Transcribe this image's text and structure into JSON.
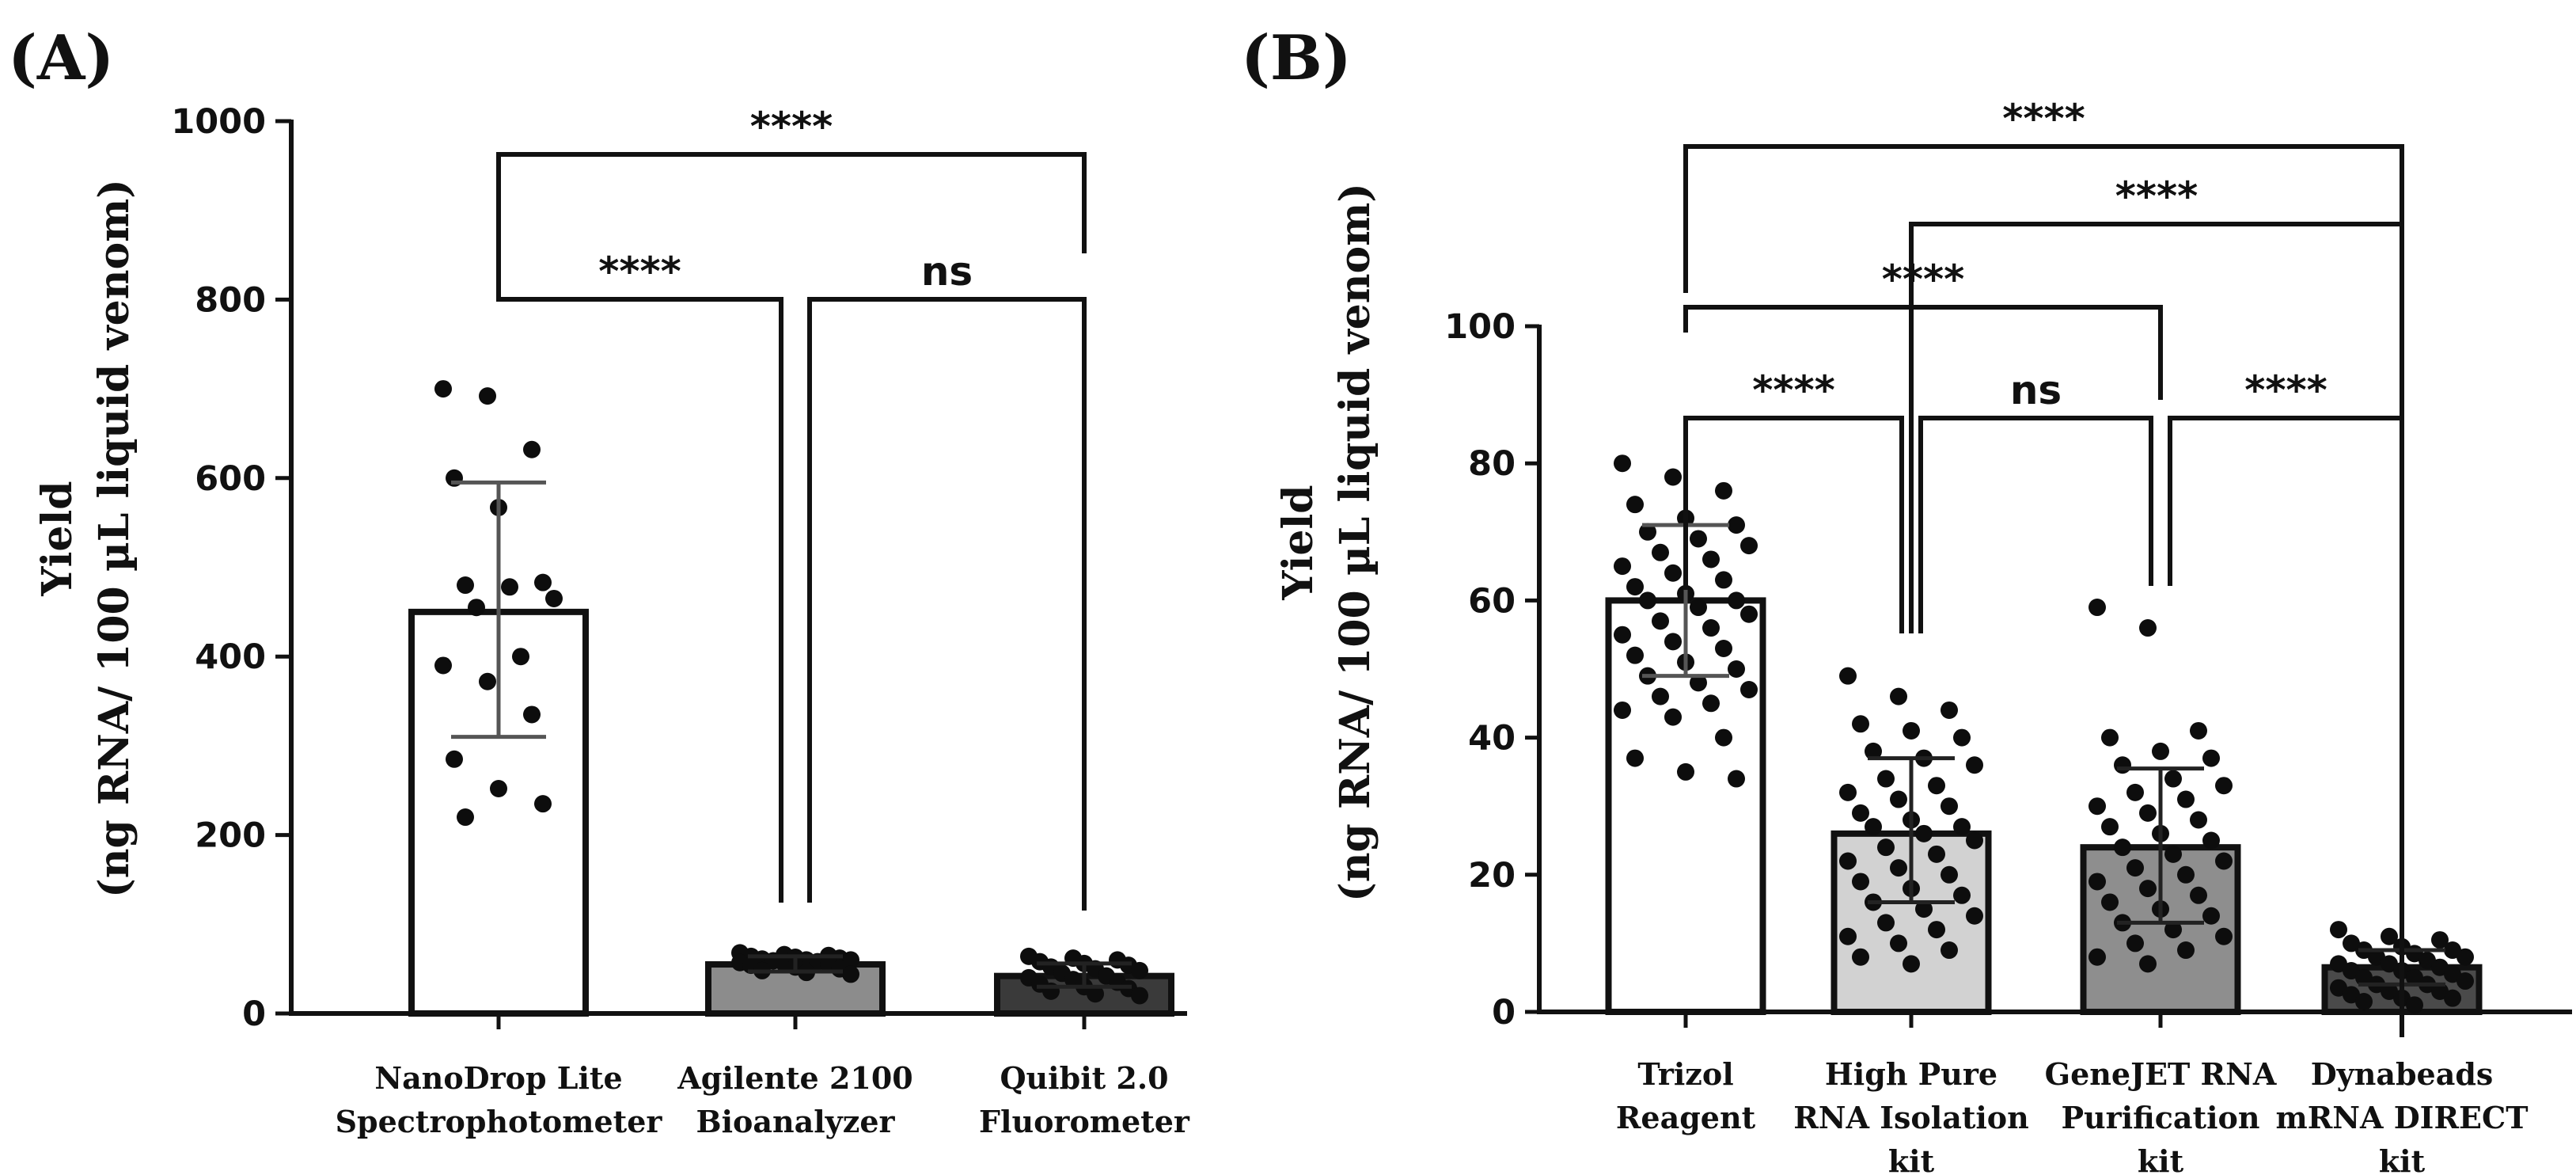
{
  "figure": {
    "panels": [
      {
        "label": "(A)",
        "ylabel_line1": "Yield",
        "ylabel_line2": "(ng RNA/ 100 µL liquid venom)"
      },
      {
        "label": "(B)",
        "ylabel_line1": "Yield",
        "ylabel_line2": "(ng RNA/ 100 µL liquid venom)"
      }
    ]
  },
  "chart_data": [
    {
      "type": "bar",
      "panel_label": "(A)",
      "title": "",
      "xlabel": "",
      "ylabel": "Yield (ng RNA/ 100 µL liquid venom)",
      "ylim": [
        0,
        1000
      ],
      "yticks": [
        0,
        200,
        400,
        600,
        800,
        1000
      ],
      "categories": [
        [
          "NanoDrop Lite",
          "Spectrophotometer"
        ],
        [
          "Agilente 2100",
          "Bioanalyzer"
        ],
        [
          "Quibit 2.0",
          "Fluorometer"
        ]
      ],
      "values": [
        450,
        55,
        42
      ],
      "error_low": [
        310,
        47,
        30
      ],
      "error_high": [
        595,
        64,
        56
      ],
      "bar_colors": [
        "#ffffff",
        "#8c8c8c",
        "#3a3a3a"
      ],
      "points": [
        [
          700,
          692,
          632,
          600,
          567,
          483,
          480,
          478,
          465,
          455,
          400,
          390,
          372,
          335,
          285,
          252,
          235,
          220
        ],
        [
          68,
          66,
          65,
          64,
          63,
          62,
          61,
          60,
          60,
          59,
          58,
          57,
          56,
          55,
          54,
          52,
          50,
          48,
          46,
          44
        ],
        [
          64,
          62,
          60,
          58,
          56,
          54,
          52,
          50,
          48,
          45,
          42,
          40,
          38,
          35,
          33,
          30,
          28,
          25,
          22,
          20
        ]
      ],
      "comparisons": [
        {
          "from": 0,
          "to": 2,
          "label": "****"
        },
        {
          "from": 0,
          "to": 1,
          "label": "****"
        },
        {
          "from": 1,
          "to": 2,
          "label": "ns"
        }
      ]
    },
    {
      "type": "bar",
      "panel_label": "(B)",
      "title": "",
      "xlabel": "",
      "ylabel": "Yield (ng RNA/ 100 µL liquid venom)",
      "ylim": [
        0,
        100
      ],
      "yticks": [
        0,
        20,
        40,
        60,
        80,
        100
      ],
      "categories": [
        [
          "Trizol",
          "Reagent"
        ],
        [
          "High Pure",
          "RNA Isolation",
          "kit"
        ],
        [
          "GeneJET RNA",
          "Purification",
          "kit"
        ],
        [
          "Dynabeads",
          "mRNA DIRECT",
          "kit"
        ]
      ],
      "values": [
        60,
        26,
        24,
        6.5
      ],
      "error_low": [
        49,
        16,
        13,
        4
      ],
      "error_high": [
        71,
        37,
        35.5,
        9
      ],
      "bar_colors": [
        "#ffffff",
        "#d2d2d2",
        "#8e8e8e",
        "#4a4a4a"
      ],
      "points": [
        [
          80,
          78,
          76,
          74,
          72,
          71,
          70,
          69,
          68,
          67,
          66,
          65,
          64,
          63,
          62,
          61,
          60,
          60,
          59,
          58,
          57,
          56,
          55,
          54,
          53,
          52,
          51,
          50,
          49,
          48,
          47,
          46,
          45,
          44,
          43,
          40,
          37,
          35,
          34
        ],
        [
          49,
          46,
          44,
          42,
          41,
          40,
          38,
          37,
          36,
          34,
          33,
          32,
          31,
          30,
          29,
          28,
          27,
          27,
          26,
          25,
          24,
          23,
          22,
          21,
          20,
          19,
          18,
          17,
          16,
          15,
          14,
          13,
          12,
          11,
          10,
          9,
          8,
          7
        ],
        [
          59,
          56,
          41,
          40,
          38,
          37,
          36,
          34,
          33,
          32,
          31,
          30,
          29,
          28,
          27,
          26,
          25,
          24,
          23,
          22,
          21,
          20,
          19,
          18,
          17,
          16,
          15,
          14,
          13,
          12,
          11,
          10,
          9,
          8,
          7
        ],
        [
          12,
          11,
          10.5,
          10,
          9.5,
          9,
          9,
          8.5,
          8,
          8,
          7.5,
          7,
          7,
          6.5,
          6,
          6,
          5.5,
          5,
          5,
          4.5,
          4,
          4,
          3.5,
          3,
          3,
          2.5,
          2,
          2,
          1.5,
          1
        ]
      ],
      "comparisons": [
        {
          "from": 0,
          "to": 3,
          "label": "****"
        },
        {
          "from": 1,
          "to": 3,
          "label": "****"
        },
        {
          "from": 0,
          "to": 2,
          "label": "****"
        },
        {
          "from": 0,
          "to": 1,
          "label": "****"
        },
        {
          "from": 1,
          "to": 2,
          "label": "ns"
        },
        {
          "from": 2,
          "to": 3,
          "label": "****"
        }
      ]
    }
  ]
}
